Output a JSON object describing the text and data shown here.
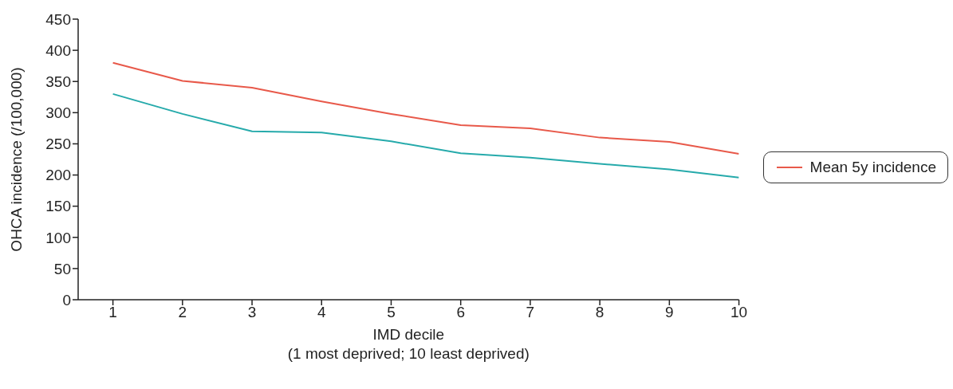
{
  "chart_data": {
    "type": "line",
    "xlabel": "IMD decile\n(1 most deprived; 10 least deprived)",
    "ylabel": "OHCA incidence (/100,000)",
    "x": [
      1,
      2,
      3,
      4,
      5,
      6,
      7,
      8,
      9,
      10
    ],
    "series": [
      {
        "name": "Mean 5y incidence",
        "color": "#e8594a",
        "values": [
          380,
          351,
          340,
          318,
          298,
          280,
          275,
          260,
          253,
          234
        ]
      },
      {
        "color": "#26aaab",
        "values": [
          330,
          298,
          270,
          268,
          254,
          235,
          228,
          218,
          209,
          196
        ]
      }
    ],
    "xlim": [
      0.5,
      10
    ],
    "xticks": [
      1,
      2,
      3,
      4,
      5,
      6,
      7,
      8,
      9,
      10
    ],
    "ylim": [
      0,
      450
    ],
    "yticks": [
      0,
      50,
      100,
      150,
      200,
      250,
      300,
      350,
      400,
      450
    ],
    "grid": false,
    "legend": "right",
    "marker": "none",
    "line_style": "solid"
  }
}
